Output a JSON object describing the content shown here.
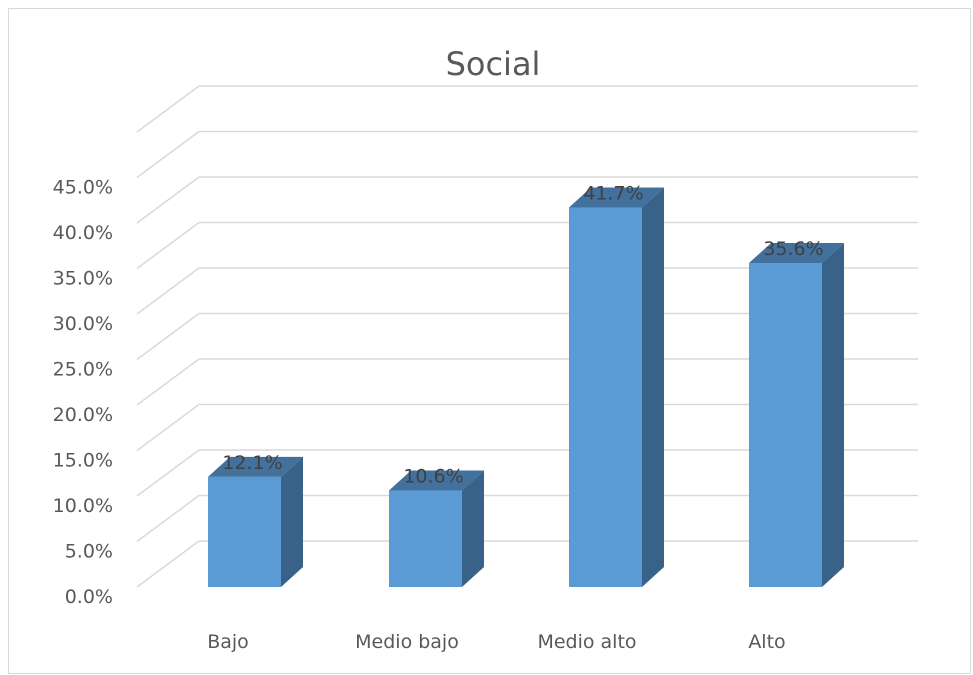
{
  "chart_data": {
    "type": "bar",
    "title": "Social",
    "categories": [
      "Bajo",
      "Medio bajo",
      "Medio alto",
      "Alto"
    ],
    "values": [
      12.1,
      10.6,
      41.7,
      35.6
    ],
    "data_labels": [
      "12.1%",
      "10.6%",
      "41.7%",
      "35.6%"
    ],
    "y_ticks": [
      "0.0%",
      "5.0%",
      "10.0%",
      "15.0%",
      "20.0%",
      "25.0%",
      "30.0%",
      "35.0%",
      "40.0%",
      "45.0%"
    ],
    "ylim": [
      0,
      50
    ],
    "xlabel": "",
    "ylabel": "",
    "grid": true,
    "legend": "none",
    "style": "3d-column"
  },
  "colors": {
    "bar_front": "#5b9bd5",
    "bar_side": "#396289",
    "bar_top": "#41719c",
    "gridline": "#d9d9d9",
    "text": "#595959"
  }
}
